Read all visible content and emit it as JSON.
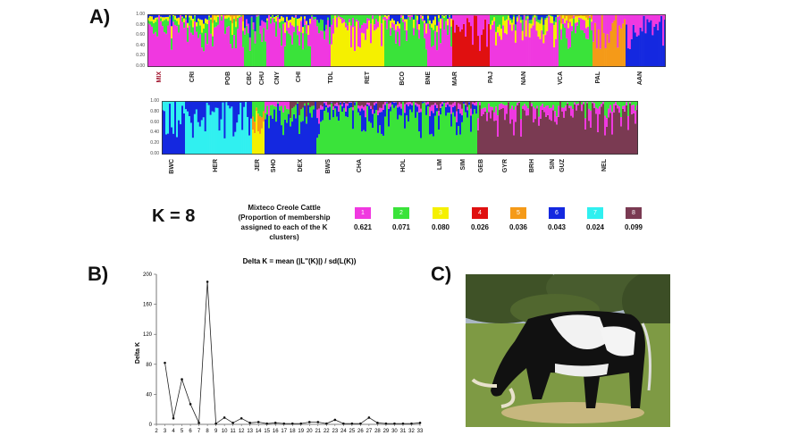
{
  "panels": {
    "a": "A)",
    "b": "B)",
    "c": "C)"
  },
  "structure": {
    "yticks": [
      "1.00",
      "0.80",
      "0.60",
      "0.40",
      "0.20",
      "0.00"
    ],
    "row1_labels": [
      "MIX",
      "CRI",
      "POB",
      "CBC",
      "CHU",
      "CNY",
      "CHI",
      "TDL",
      "RET",
      "BCO",
      "BNE",
      "MAR",
      "PAJ",
      "NAN",
      "VCA",
      "PAL",
      "AAN"
    ],
    "row2_labels": [
      "BWC",
      "HER",
      "JER",
      "SHO",
      "DEX",
      "BWS",
      "CHA",
      "HOL",
      "LIM",
      "SIM",
      "GEB",
      "GYR",
      "BRH",
      "SIN",
      "GUZ",
      "NEL"
    ]
  },
  "k_label": "K = 8",
  "legend": {
    "title_lines": [
      "Mixteco Creole Cattle",
      "(Proportion of membership",
      "assigned to each of the K",
      "clusters)"
    ],
    "clusters": [
      {
        "num": "1",
        "color": "#f038e0",
        "value": "0.621"
      },
      {
        "num": "2",
        "color": "#3ae33a",
        "value": "0.071"
      },
      {
        "num": "3",
        "color": "#f5f000",
        "value": "0.080"
      },
      {
        "num": "4",
        "color": "#e01010",
        "value": "0.026"
      },
      {
        "num": "5",
        "color": "#f59a18",
        "value": "0.036"
      },
      {
        "num": "6",
        "color": "#1428e0",
        "value": "0.043"
      },
      {
        "num": "7",
        "color": "#30f0f0",
        "value": "0.024"
      },
      {
        "num": "8",
        "color": "#7a3a52",
        "value": "0.099"
      }
    ]
  },
  "chart_data": {
    "type": "line",
    "title": "Delta K = mean (|L''(K)|) / sd(L(K))",
    "xlabel": "",
    "ylabel": "Delta K",
    "x": [
      2,
      3,
      4,
      5,
      6,
      7,
      8,
      9,
      10,
      11,
      12,
      13,
      14,
      15,
      16,
      17,
      18,
      19,
      20,
      21,
      22,
      23,
      24,
      25,
      26,
      27,
      28,
      29,
      30,
      31,
      32,
      33
    ],
    "y": [
      null,
      82,
      8,
      60,
      27,
      2,
      190,
      1,
      9,
      2,
      8,
      2,
      3,
      1,
      2,
      1,
      1,
      1,
      3,
      3,
      1,
      6,
      1,
      1,
      1,
      9,
      2,
      1,
      1,
      1,
      1,
      2
    ],
    "ylim": [
      0,
      200
    ],
    "yticks": [
      0,
      40,
      80,
      120,
      160,
      200
    ],
    "xlim": [
      2,
      33
    ]
  },
  "photo": {
    "alt": "black and white cattle grazing"
  }
}
